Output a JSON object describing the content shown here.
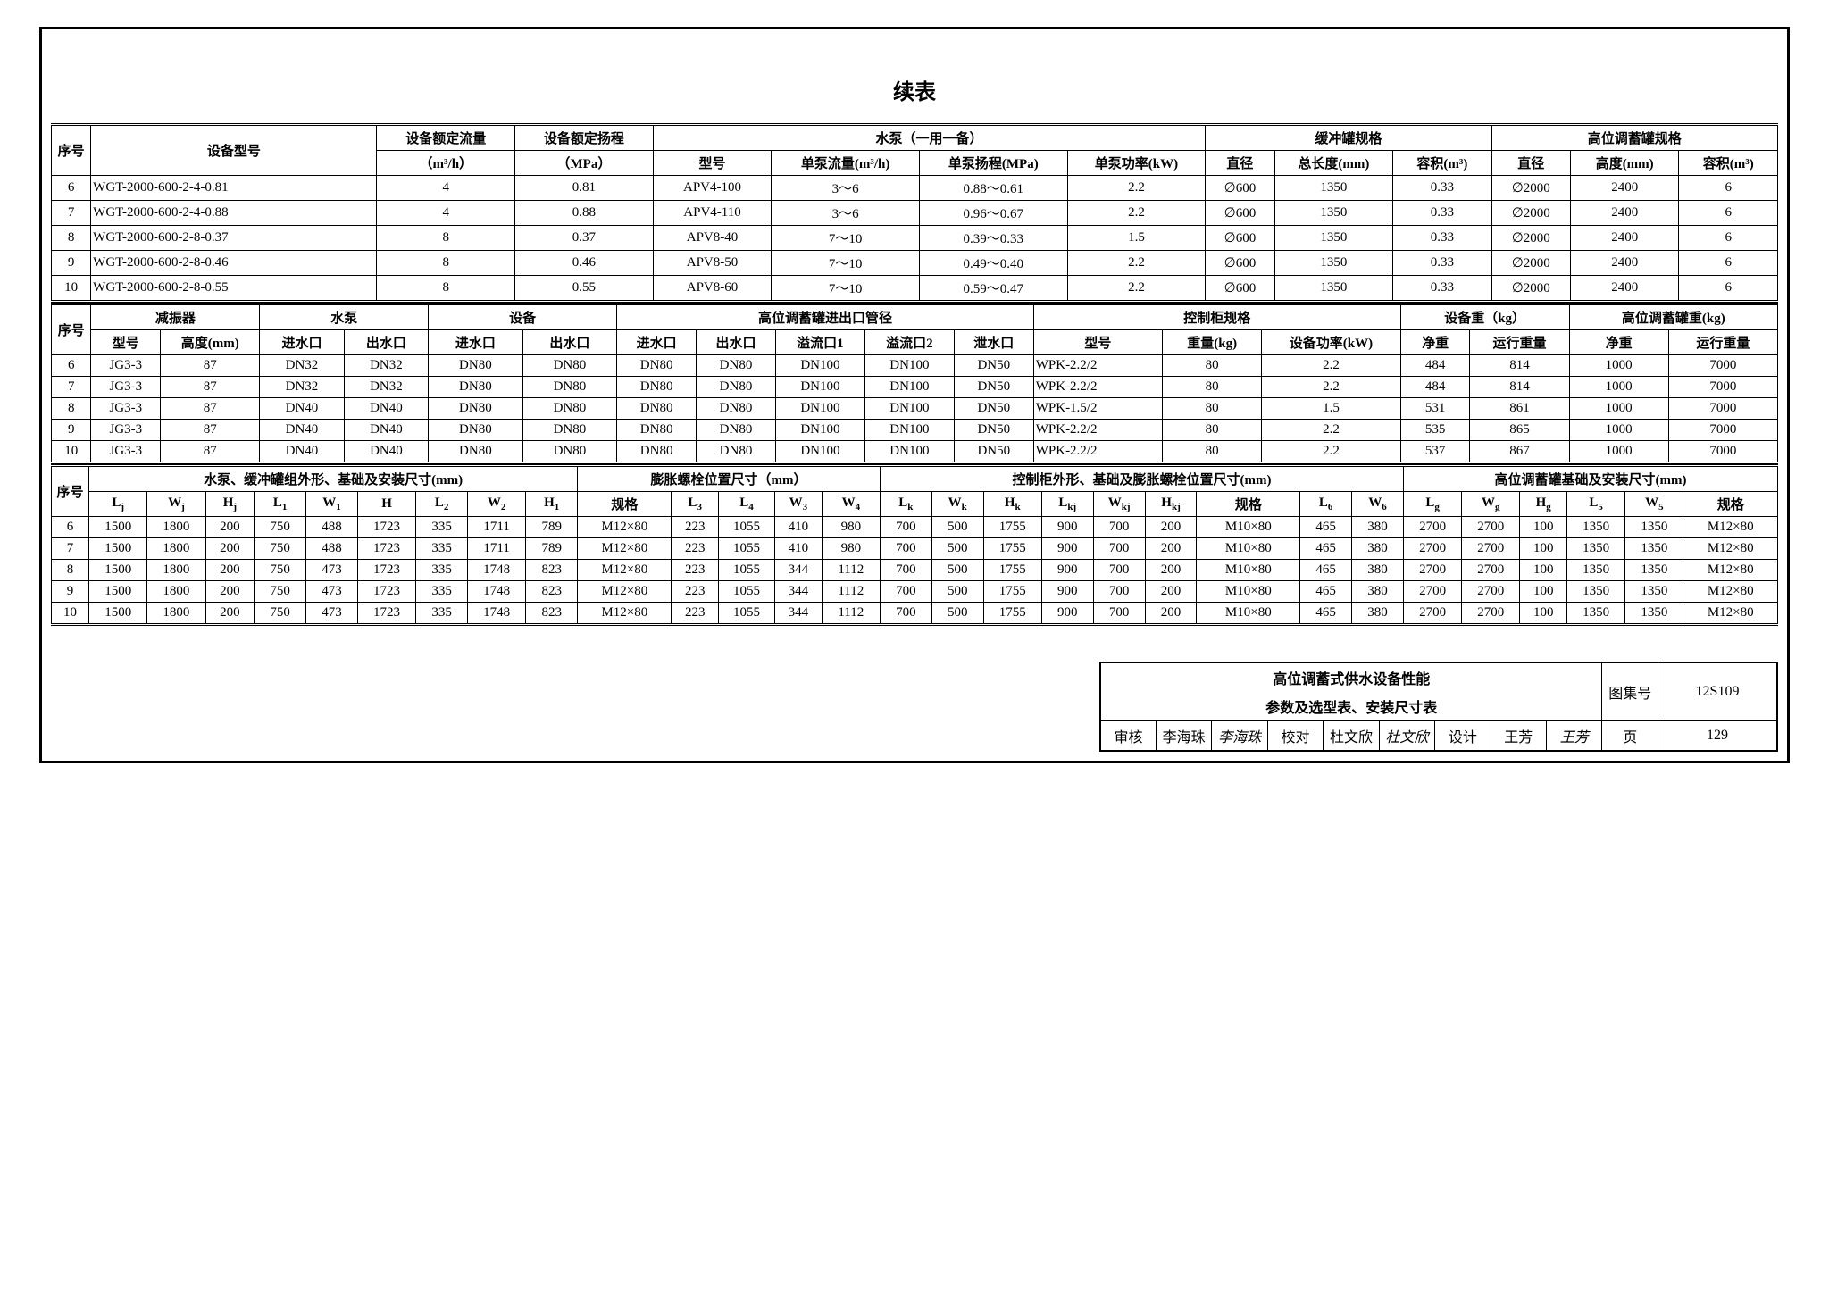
{
  "title": "续表",
  "colors": {
    "border": "#000000",
    "bg": "#ffffff",
    "text": "#000000"
  },
  "header1": {
    "seq": "序号",
    "model": "设备型号",
    "rated_flow": "设备额定流量",
    "rated_flow_u": "（m³/h）",
    "rated_head": "设备额定扬程",
    "rated_head_u": "（MPa）",
    "pump_group": "水泵（一用一备）",
    "pump_model": "型号",
    "pump_flow": "单泵流量(m³/h)",
    "pump_head": "单泵扬程(MPa)",
    "pump_power": "单泵功率(kW)",
    "buf_group": "缓冲罐规格",
    "buf_dia": "直径",
    "buf_len": "总长度(mm)",
    "buf_vol": "容积(m³)",
    "tank_group": "高位调蓄罐规格",
    "tank_dia": "直径",
    "tank_h": "高度(mm)",
    "tank_vol": "容积(m³)"
  },
  "rows1": [
    {
      "n": "6",
      "model": "WGT-2000-600-2-4-0.81",
      "rf": "4",
      "rh": "0.81",
      "pm": "APV4-100",
      "pf": "3～6",
      "ph": "0.88～0.61",
      "pp": "2.2",
      "bd": "∅600",
      "bl": "1350",
      "bv": "0.33",
      "td": "∅2000",
      "th": "2400",
      "tv": "6"
    },
    {
      "n": "7",
      "model": "WGT-2000-600-2-4-0.88",
      "rf": "4",
      "rh": "0.88",
      "pm": "APV4-110",
      "pf": "3～6",
      "ph": "0.96～0.67",
      "pp": "2.2",
      "bd": "∅600",
      "bl": "1350",
      "bv": "0.33",
      "td": "∅2000",
      "th": "2400",
      "tv": "6"
    },
    {
      "n": "8",
      "model": "WGT-2000-600-2-8-0.37",
      "rf": "8",
      "rh": "0.37",
      "pm": "APV8-40",
      "pf": "7～10",
      "ph": "0.39～0.33",
      "pp": "1.5",
      "bd": "∅600",
      "bl": "1350",
      "bv": "0.33",
      "td": "∅2000",
      "th": "2400",
      "tv": "6"
    },
    {
      "n": "9",
      "model": "WGT-2000-600-2-8-0.46",
      "rf": "8",
      "rh": "0.46",
      "pm": "APV8-50",
      "pf": "7～10",
      "ph": "0.49～0.40",
      "pp": "2.2",
      "bd": "∅600",
      "bl": "1350",
      "bv": "0.33",
      "td": "∅2000",
      "th": "2400",
      "tv": "6"
    },
    {
      "n": "10",
      "model": "WGT-2000-600-2-8-0.55",
      "rf": "8",
      "rh": "0.55",
      "pm": "APV8-60",
      "pf": "7～10",
      "ph": "0.59～0.47",
      "pp": "2.2",
      "bd": "∅600",
      "bl": "1350",
      "bv": "0.33",
      "td": "∅2000",
      "th": "2400",
      "tv": "6"
    }
  ],
  "header2": {
    "seq": "序号",
    "damper_g": "减振器",
    "pump_g": "水泵",
    "equip_g": "设备",
    "tank_port_g": "高位调蓄罐进出口管径",
    "cabinet_g": "控制柜规格",
    "equip_wt_g": "设备重（kg）",
    "tank_wt_g": "高位调蓄罐重(kg)",
    "d_model": "型号",
    "d_h": "高度(mm)",
    "in": "进水口",
    "out": "出水口",
    "of1": "溢流口1",
    "of2": "溢流口2",
    "drain": "泄水口",
    "c_model": "型号",
    "c_wt": "重量(kg)",
    "c_pw": "设备功率(kW)",
    "net": "净重",
    "run": "运行重量"
  },
  "rows2": [
    {
      "n": "6",
      "dm": "JG3-3",
      "dh": "87",
      "pi": "DN32",
      "po": "DN32",
      "ei": "DN80",
      "eo": "DN80",
      "ti": "DN80",
      "to": "DN80",
      "o1": "DN100",
      "o2": "DN100",
      "dr": "DN50",
      "cm": "WPK-2.2/2",
      "cw": "80",
      "cp": "2.2",
      "net": "484",
      "run": "814",
      "tn": "1000",
      "tr": "7000"
    },
    {
      "n": "7",
      "dm": "JG3-3",
      "dh": "87",
      "pi": "DN32",
      "po": "DN32",
      "ei": "DN80",
      "eo": "DN80",
      "ti": "DN80",
      "to": "DN80",
      "o1": "DN100",
      "o2": "DN100",
      "dr": "DN50",
      "cm": "WPK-2.2/2",
      "cw": "80",
      "cp": "2.2",
      "net": "484",
      "run": "814",
      "tn": "1000",
      "tr": "7000"
    },
    {
      "n": "8",
      "dm": "JG3-3",
      "dh": "87",
      "pi": "DN40",
      "po": "DN40",
      "ei": "DN80",
      "eo": "DN80",
      "ti": "DN80",
      "to": "DN80",
      "o1": "DN100",
      "o2": "DN100",
      "dr": "DN50",
      "cm": "WPK-1.5/2",
      "cw": "80",
      "cp": "1.5",
      "net": "531",
      "run": "861",
      "tn": "1000",
      "tr": "7000"
    },
    {
      "n": "9",
      "dm": "JG3-3",
      "dh": "87",
      "pi": "DN40",
      "po": "DN40",
      "ei": "DN80",
      "eo": "DN80",
      "ti": "DN80",
      "to": "DN80",
      "o1": "DN100",
      "o2": "DN100",
      "dr": "DN50",
      "cm": "WPK-2.2/2",
      "cw": "80",
      "cp": "2.2",
      "net": "535",
      "run": "865",
      "tn": "1000",
      "tr": "7000"
    },
    {
      "n": "10",
      "dm": "JG3-3",
      "dh": "87",
      "pi": "DN40",
      "po": "DN40",
      "ei": "DN80",
      "eo": "DN80",
      "ti": "DN80",
      "to": "DN80",
      "o1": "DN100",
      "o2": "DN100",
      "dr": "DN50",
      "cm": "WPK-2.2/2",
      "cw": "80",
      "cp": "2.2",
      "net": "537",
      "run": "867",
      "tn": "1000",
      "tr": "7000"
    }
  ],
  "header3": {
    "seq": "序号",
    "g1": "水泵、缓冲罐组外形、基础及安装尺寸(mm)",
    "g2": "膨胀螺栓位置尺寸（mm）",
    "g3": "控制柜外形、基础及膨胀螺栓位置尺寸(mm)",
    "g4": "高位调蓄罐基础及安装尺寸(mm)",
    "spec": "规格"
  },
  "cols3": [
    "Lⱼ",
    "Wⱼ",
    "Hⱼ",
    "L₁",
    "W₁",
    "H",
    "L₂",
    "W₂",
    "H₁",
    "规格",
    "L₃",
    "L₄",
    "W₃",
    "W₄",
    "Lₖ",
    "Wₖ",
    "Hₖ",
    "Lₖⱼ",
    "Wₖⱼ",
    "Hₖⱼ",
    "规格",
    "L₆",
    "W₆",
    "Lg",
    "Wg",
    "Hg",
    "L₅",
    "W₅",
    "规格"
  ],
  "rows3": [
    {
      "n": "6",
      "v": [
        "1500",
        "1800",
        "200",
        "750",
        "488",
        "1723",
        "335",
        "1711",
        "789",
        "M12×80",
        "223",
        "1055",
        "410",
        "980",
        "700",
        "500",
        "1755",
        "900",
        "700",
        "200",
        "M10×80",
        "465",
        "380",
        "2700",
        "2700",
        "100",
        "1350",
        "1350",
        "M12×80"
      ]
    },
    {
      "n": "7",
      "v": [
        "1500",
        "1800",
        "200",
        "750",
        "488",
        "1723",
        "335",
        "1711",
        "789",
        "M12×80",
        "223",
        "1055",
        "410",
        "980",
        "700",
        "500",
        "1755",
        "900",
        "700",
        "200",
        "M10×80",
        "465",
        "380",
        "2700",
        "2700",
        "100",
        "1350",
        "1350",
        "M12×80"
      ]
    },
    {
      "n": "8",
      "v": [
        "1500",
        "1800",
        "200",
        "750",
        "473",
        "1723",
        "335",
        "1748",
        "823",
        "M12×80",
        "223",
        "1055",
        "344",
        "1112",
        "700",
        "500",
        "1755",
        "900",
        "700",
        "200",
        "M10×80",
        "465",
        "380",
        "2700",
        "2700",
        "100",
        "1350",
        "1350",
        "M12×80"
      ]
    },
    {
      "n": "9",
      "v": [
        "1500",
        "1800",
        "200",
        "750",
        "473",
        "1723",
        "335",
        "1748",
        "823",
        "M12×80",
        "223",
        "1055",
        "344",
        "1112",
        "700",
        "500",
        "1755",
        "900",
        "700",
        "200",
        "M10×80",
        "465",
        "380",
        "2700",
        "2700",
        "100",
        "1350",
        "1350",
        "M12×80"
      ]
    },
    {
      "n": "10",
      "v": [
        "1500",
        "1800",
        "200",
        "750",
        "473",
        "1723",
        "335",
        "1748",
        "823",
        "M12×80",
        "223",
        "1055",
        "344",
        "1112",
        "700",
        "500",
        "1755",
        "900",
        "700",
        "200",
        "M10×80",
        "465",
        "380",
        "2700",
        "2700",
        "100",
        "1350",
        "1350",
        "M12×80"
      ]
    }
  ],
  "footer": {
    "title1": "高位调蓄式供水设备性能",
    "title2": "参数及选型表、安装尺寸表",
    "atlas_l": "图集号",
    "atlas": "12S109",
    "rev_l": "审核",
    "rev": "李海珠",
    "rev_sig": "李海珠",
    "chk_l": "校对",
    "chk": "杜文欣",
    "chk_sig": "杜文欣",
    "des_l": "设计",
    "des": "王芳",
    "des_sig": "王芳",
    "page_l": "页",
    "page": "129"
  }
}
